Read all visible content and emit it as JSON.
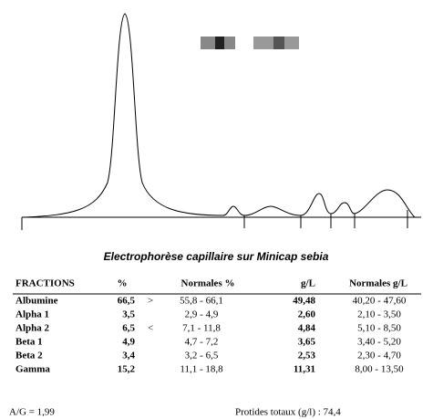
{
  "title": "Electrophorèse capillaire  sur Minicap sebia",
  "table": {
    "headers": [
      "FRACTIONS",
      "%",
      "Normales %",
      "g/L",
      "Normales g/L"
    ],
    "rows": [
      {
        "fraction": "Albumine",
        "percent": "66,5",
        "flag": ">",
        "normal_percent": "55,8 - 66,1",
        "gl": "49,48",
        "normal_gl": "40,20 - 47,60"
      },
      {
        "fraction": "Alpha 1",
        "percent": "3,5",
        "normal_percent": "2,9 -  4,9",
        "gl": "2,60",
        "normal_gl": "2,10 - 3,50"
      },
      {
        "fraction": "Alpha 2",
        "percent": "6,5",
        "flag": "<",
        "normal_percent": "7,1 - 11,8",
        "gl": "4,84",
        "normal_gl": "5,10 - 8,50"
      },
      {
        "fraction": "Beta 1",
        "percent": "4,9",
        "normal_percent": "4,7 -  7,2",
        "gl": "3,65",
        "normal_gl": "3,40 - 5,20"
      },
      {
        "fraction": "Beta 2",
        "percent": "3,4",
        "normal_percent": "3,2 -  6,5",
        "gl": "2,53",
        "normal_gl": "2,30 - 4,70"
      },
      {
        "fraction": "Gamma",
        "percent": "15,2",
        "normal_percent": "11,1 - 18,8",
        "gl": "11,31",
        "normal_gl": "8,00 - 13,50"
      }
    ]
  },
  "footer": {
    "ratio": "A/G = 1,99",
    "total_protein": "Protides totaux (g/l)  :  74,4"
  }
}
